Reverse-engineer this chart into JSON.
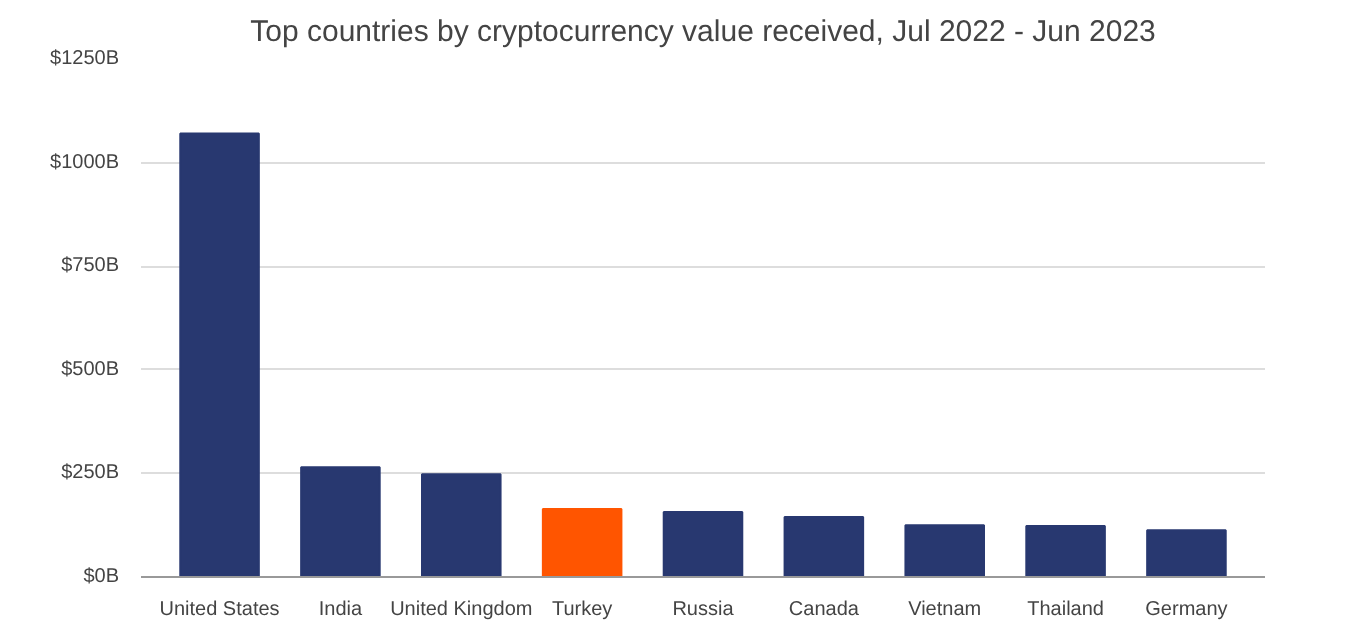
{
  "chart_data": {
    "type": "bar",
    "title": "Top countries by cryptocurrency value received, Jul 2022 - Jun 2023",
    "categories": [
      "United States",
      "India",
      "United Kingdom",
      "Turkey",
      "Russia",
      "Canada",
      "Vietnam",
      "Thailand",
      "Germany"
    ],
    "values": [
      1070,
      265,
      248,
      164,
      157,
      145,
      125,
      123,
      113
    ],
    "colors": [
      "#283870",
      "#283870",
      "#283870",
      "#ff5500",
      "#283870",
      "#283870",
      "#283870",
      "#283870",
      "#283870"
    ],
    "ylim": [
      0,
      1250
    ],
    "yticks": [
      {
        "value": 0,
        "label": "$0B"
      },
      {
        "value": 250,
        "label": "$250B"
      },
      {
        "value": 500,
        "label": "$500B"
      },
      {
        "value": 750,
        "label": "$750B"
      },
      {
        "value": 1000,
        "label": "$1000B"
      },
      {
        "value": 1250,
        "label": "$1250B"
      }
    ],
    "grid": "y"
  }
}
